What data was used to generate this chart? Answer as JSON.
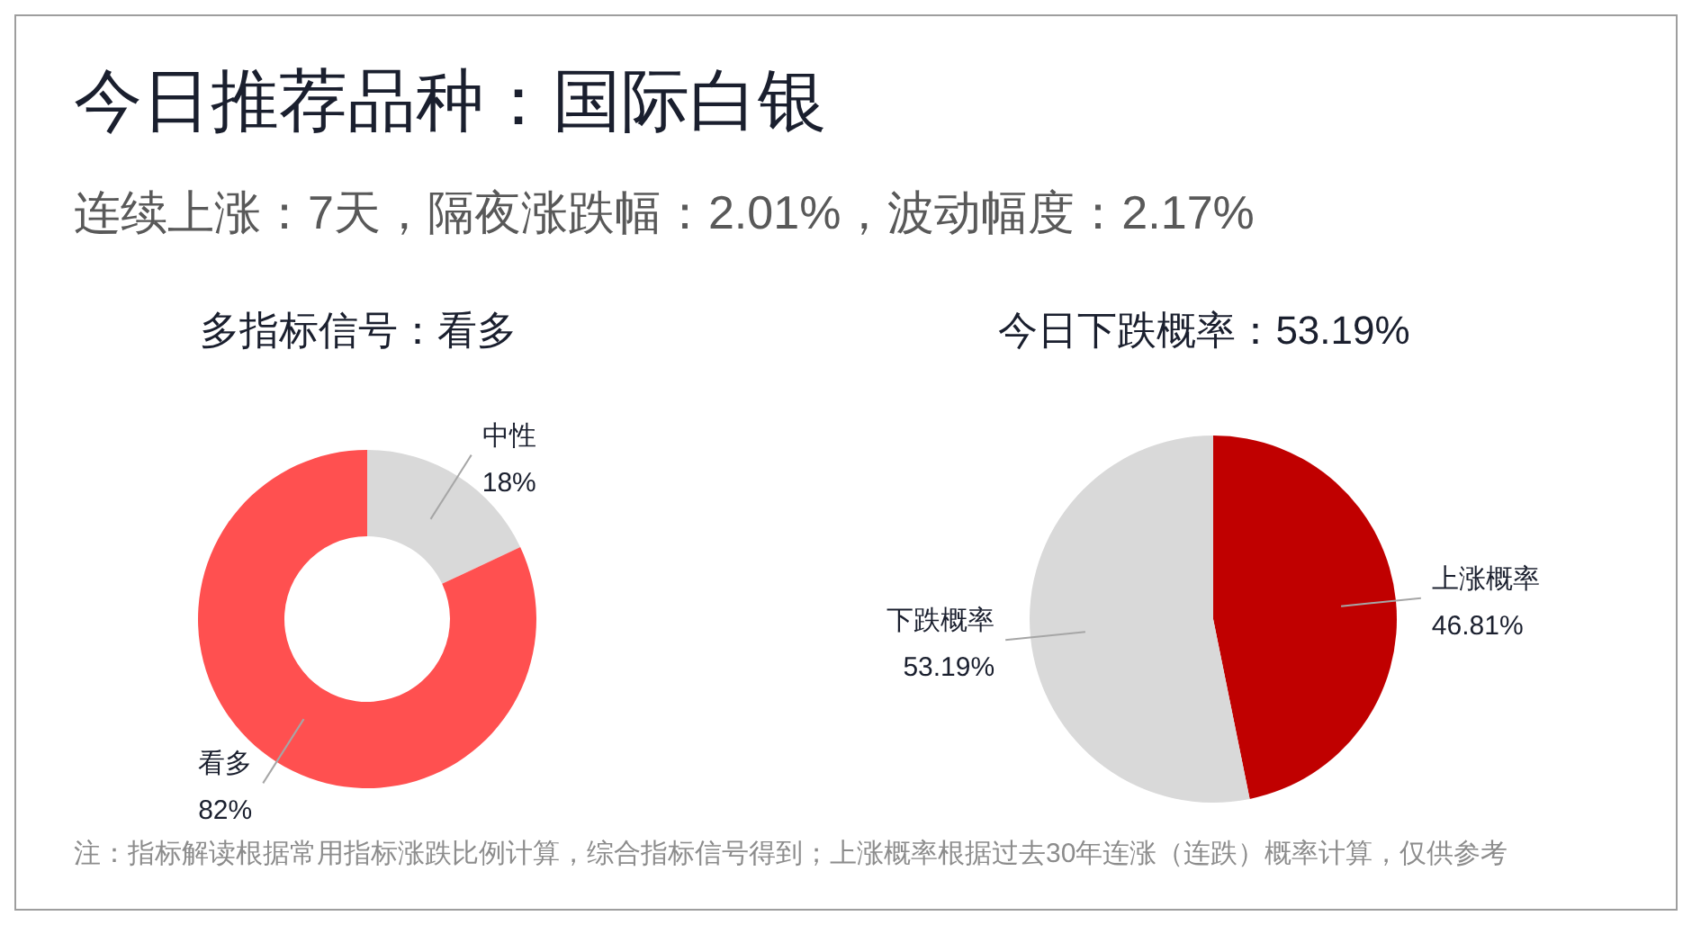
{
  "chart_data": [
    {
      "type": "other",
      "title": "今日推荐品种：国际白银",
      "subtitle": "连续上涨：7天，隔夜涨跌幅：2.01%，波动幅度：2.17%",
      "annotations": [
        "注：指标解读根据常用指标涨跌比例计算，综合指标信号得到；上涨概率根据过去30年连涨（连跌）概率计算，仅供参考"
      ]
    },
    {
      "type": "donut",
      "title": "多指标信号：看多",
      "categories": [
        "中性",
        "看多"
      ],
      "values": [
        18,
        82
      ],
      "colors": [
        "#d9d9d9",
        "#ff5050"
      ],
      "value_labels": [
        "18%",
        "82%"
      ]
    },
    {
      "type": "pie",
      "title": "今日下跌概率：53.19%",
      "categories": [
        "上涨概率",
        "下跌概率"
      ],
      "values": [
        46.81,
        53.19
      ],
      "colors": [
        "#c00000",
        "#d9d9d9"
      ],
      "value_labels": [
        "46.81%",
        "53.19%"
      ]
    }
  ]
}
